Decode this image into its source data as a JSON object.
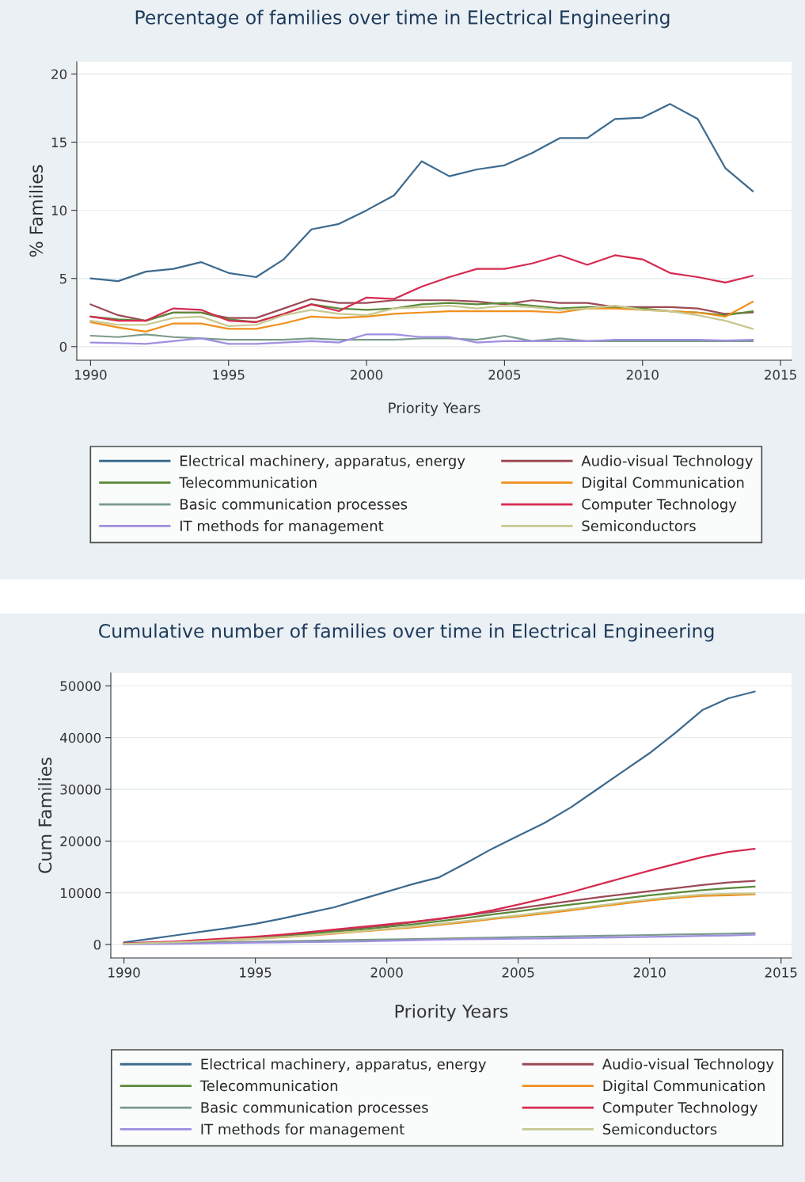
{
  "chart_data": [
    {
      "type": "line",
      "title": "Percentage of families over time in Electrical Engineering",
      "xlabel": "Priority Years",
      "ylabel": "% Families",
      "x": [
        1990,
        1991,
        1992,
        1993,
        1994,
        1995,
        1996,
        1997,
        1998,
        1999,
        2000,
        2001,
        2002,
        2003,
        2004,
        2005,
        2006,
        2007,
        2008,
        2009,
        2010,
        2011,
        2012,
        2013,
        2014
      ],
      "xlim": [
        1989.5,
        2015.4
      ],
      "xticks": [
        1990,
        1995,
        2000,
        2005,
        2010,
        2015
      ],
      "ylim": [
        -1,
        20.9
      ],
      "yticks": [
        0,
        5,
        10,
        15,
        20
      ],
      "grid": "y",
      "legend": "bottom",
      "series": [
        {
          "name": "Electrical machinery, apparatus, energy",
          "color": "#3d6a8e",
          "values": [
            5.0,
            4.8,
            5.5,
            5.7,
            6.2,
            5.4,
            5.1,
            6.4,
            8.6,
            9.0,
            10.0,
            11.1,
            13.6,
            12.5,
            13.0,
            13.3,
            14.2,
            15.3,
            15.3,
            16.7,
            16.8,
            17.8,
            16.7,
            13.1,
            11.4
          ]
        },
        {
          "name": "Audio-visual Technology",
          "color": "#9c4a55",
          "values": [
            3.1,
            2.3,
            1.9,
            2.5,
            2.5,
            2.1,
            2.1,
            2.8,
            3.5,
            3.2,
            3.2,
            3.4,
            3.4,
            3.4,
            3.3,
            3.1,
            3.4,
            3.2,
            3.2,
            2.9,
            2.9,
            2.9,
            2.8,
            2.4,
            2.5
          ]
        },
        {
          "name": "Telecommunication",
          "color": "#5a8a3a",
          "values": [
            2.2,
            2.0,
            1.9,
            2.5,
            2.5,
            2.0,
            1.8,
            2.4,
            3.1,
            2.8,
            2.7,
            2.8,
            3.1,
            3.2,
            3.1,
            3.2,
            3.0,
            2.8,
            2.9,
            2.9,
            2.8,
            2.6,
            2.5,
            2.3,
            2.6
          ]
        },
        {
          "name": "Digital Communication",
          "color": "#f0901c",
          "values": [
            1.8,
            1.4,
            1.1,
            1.7,
            1.7,
            1.3,
            1.3,
            1.7,
            2.2,
            2.1,
            2.2,
            2.4,
            2.5,
            2.6,
            2.6,
            2.6,
            2.6,
            2.5,
            2.8,
            2.8,
            2.7,
            2.6,
            2.5,
            2.2,
            3.3
          ]
        },
        {
          "name": "Basic communication processes",
          "color": "#7a9a8a",
          "values": [
            0.8,
            0.7,
            0.9,
            0.7,
            0.6,
            0.5,
            0.5,
            0.5,
            0.6,
            0.5,
            0.5,
            0.5,
            0.6,
            0.6,
            0.5,
            0.8,
            0.4,
            0.6,
            0.4,
            0.4,
            0.4,
            0.4,
            0.4,
            0.4,
            0.4
          ]
        },
        {
          "name": "Computer Technology",
          "color": "#d62a50",
          "values": [
            2.2,
            1.9,
            1.9,
            2.8,
            2.7,
            1.9,
            1.8,
            2.4,
            3.1,
            2.6,
            3.6,
            3.5,
            4.4,
            5.1,
            5.7,
            5.7,
            6.1,
            6.7,
            6.0,
            6.7,
            6.4,
            5.4,
            5.1,
            4.7,
            5.2
          ]
        },
        {
          "name": "IT methods for management",
          "color": "#9f8fe0",
          "values": [
            0.3,
            0.25,
            0.2,
            0.4,
            0.6,
            0.2,
            0.2,
            0.3,
            0.4,
            0.3,
            0.9,
            0.9,
            0.7,
            0.7,
            0.3,
            0.4,
            0.4,
            0.4,
            0.4,
            0.5,
            0.5,
            0.5,
            0.5,
            0.45,
            0.5
          ]
        },
        {
          "name": "Semiconductors",
          "color": "#c8c890",
          "values": [
            1.9,
            1.6,
            1.6,
            2.1,
            2.2,
            1.5,
            1.6,
            2.3,
            2.7,
            2.4,
            2.3,
            2.8,
            2.9,
            3.0,
            2.8,
            3.0,
            2.9,
            2.7,
            2.8,
            3.0,
            2.7,
            2.6,
            2.3,
            1.9,
            1.3
          ]
        }
      ]
    },
    {
      "type": "line",
      "title": "Cumulative number of families over time in Electrical Engineering",
      "xlabel": "Priority Years",
      "ylabel": "Cum Families",
      "x": [
        1990,
        1991,
        1992,
        1993,
        1994,
        1995,
        1996,
        1997,
        1998,
        1999,
        2000,
        2001,
        2002,
        2003,
        2004,
        2005,
        2006,
        2007,
        2008,
        2009,
        2010,
        2011,
        2012,
        2013,
        2014
      ],
      "xlim": [
        1989.5,
        2015.4
      ],
      "xticks": [
        1990,
        1995,
        2000,
        2005,
        2010,
        2015
      ],
      "ylim": [
        -2600,
        52500
      ],
      "yticks": [
        0,
        10000,
        20000,
        30000,
        40000,
        50000
      ],
      "grid": "y",
      "legend": "bottom",
      "series": [
        {
          "name": "Electrical machinery, apparatus, energy",
          "color": "#3d6a8e",
          "values": [
            400,
            1100,
            1800,
            2500,
            3200,
            4000,
            5000,
            6100,
            7200,
            8700,
            10200,
            11700,
            13000,
            15700,
            18500,
            21000,
            23500,
            26500,
            30000,
            33500,
            37000,
            41000,
            45300,
            47600,
            48900
          ]
        },
        {
          "name": "Audio-visual Technology",
          "color": "#9c4a55",
          "values": [
            200,
            350,
            500,
            800,
            1100,
            1400,
            1700,
            2200,
            2700,
            3200,
            3700,
            4300,
            4900,
            5600,
            6300,
            7000,
            7700,
            8400,
            9100,
            9700,
            10300,
            10900,
            11500,
            12000,
            12300
          ]
        },
        {
          "name": "Telecommunication",
          "color": "#5a8a3a",
          "values": [
            200,
            300,
            500,
            700,
            1000,
            1300,
            1600,
            2000,
            2500,
            2900,
            3400,
            3900,
            4500,
            5100,
            5800,
            6400,
            7100,
            7700,
            8300,
            8900,
            9500,
            10000,
            10500,
            10900,
            11200
          ]
        },
        {
          "name": "Digital Communication",
          "color": "#f0901c",
          "values": [
            null,
            null,
            null,
            600,
            900,
            1100,
            1400,
            1700,
            2100,
            2500,
            2900,
            3300,
            3800,
            4300,
            4900,
            5400,
            6000,
            6600,
            7300,
            7900,
            8500,
            9000,
            9400,
            9500,
            9700
          ]
        },
        {
          "name": "Basic communication processes",
          "color": "#7a9a8a",
          "values": [
            100,
            200,
            300,
            400,
            480,
            560,
            640,
            720,
            810,
            890,
            980,
            1060,
            1150,
            1240,
            1320,
            1430,
            1510,
            1600,
            1680,
            1760,
            1840,
            1920,
            2000,
            2100,
            2200
          ]
        },
        {
          "name": "Computer Technology",
          "color": "#d62a50",
          "values": [
            200,
            400,
            600,
            900,
            1200,
            1500,
            1900,
            2400,
            2900,
            3400,
            3900,
            4400,
            5000,
            5700,
            6600,
            7700,
            8900,
            10100,
            11500,
            12900,
            14300,
            15600,
            16900,
            17900,
            18500
          ]
        },
        {
          "name": "IT methods for management",
          "color": "#9f8fe0",
          "values": [
            50,
            100,
            150,
            220,
            300,
            350,
            400,
            460,
            530,
            590,
            700,
            820,
            920,
            1010,
            1060,
            1120,
            1180,
            1250,
            1320,
            1400,
            1480,
            1560,
            1650,
            1730,
            1900
          ]
        },
        {
          "name": "Semiconductors",
          "color": "#c8c890",
          "values": [
            150,
            300,
            450,
            650,
            900,
            1150,
            1400,
            1750,
            2200,
            2600,
            3000,
            3500,
            4000,
            4550,
            5100,
            5650,
            6250,
            6850,
            7500,
            8150,
            8750,
            9250,
            9650,
            9800,
            9900
          ]
        }
      ]
    }
  ]
}
